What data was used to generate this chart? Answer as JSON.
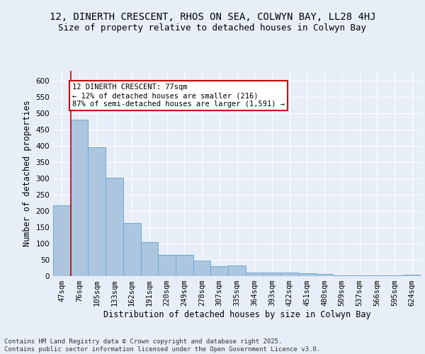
{
  "title": "12, DINERTH CRESCENT, RHOS ON SEA, COLWYN BAY, LL28 4HJ",
  "subtitle": "Size of property relative to detached houses in Colwyn Bay",
  "xlabel": "Distribution of detached houses by size in Colwyn Bay",
  "ylabel": "Number of detached properties",
  "categories": [
    "47sqm",
    "76sqm",
    "105sqm",
    "133sqm",
    "162sqm",
    "191sqm",
    "220sqm",
    "249sqm",
    "278sqm",
    "307sqm",
    "335sqm",
    "364sqm",
    "393sqm",
    "422sqm",
    "451sqm",
    "480sqm",
    "509sqm",
    "537sqm",
    "566sqm",
    "595sqm",
    "624sqm"
  ],
  "values": [
    218,
    480,
    395,
    302,
    163,
    105,
    65,
    65,
    47,
    30,
    32,
    10,
    10,
    10,
    8,
    6,
    3,
    3,
    3,
    3,
    5
  ],
  "bar_color": "#adc6e0",
  "bar_edge_color": "#6baad0",
  "red_line_x": 0.5,
  "annotation_text": "12 DINERTH CRESCENT: 77sqm\n← 12% of detached houses are smaller (216)\n87% of semi-detached houses are larger (1,591) →",
  "annotation_box_color": "#ffffff",
  "annotation_border_color": "#cc0000",
  "red_line_color": "#cc0000",
  "ylim": [
    0,
    630
  ],
  "yticks": [
    0,
    50,
    100,
    150,
    200,
    250,
    300,
    350,
    400,
    450,
    500,
    550,
    600
  ],
  "footer": "Contains HM Land Registry data © Crown copyright and database right 2025.\nContains public sector information licensed under the Open Government Licence v3.0.",
  "bg_color": "#e8eef8",
  "plot_bg_color": "#e8eef8",
  "grid_color": "#ffffff",
  "title_fontsize": 10,
  "subtitle_fontsize": 9,
  "axis_label_fontsize": 8.5,
  "tick_fontsize": 7.5,
  "footer_fontsize": 6.5
}
